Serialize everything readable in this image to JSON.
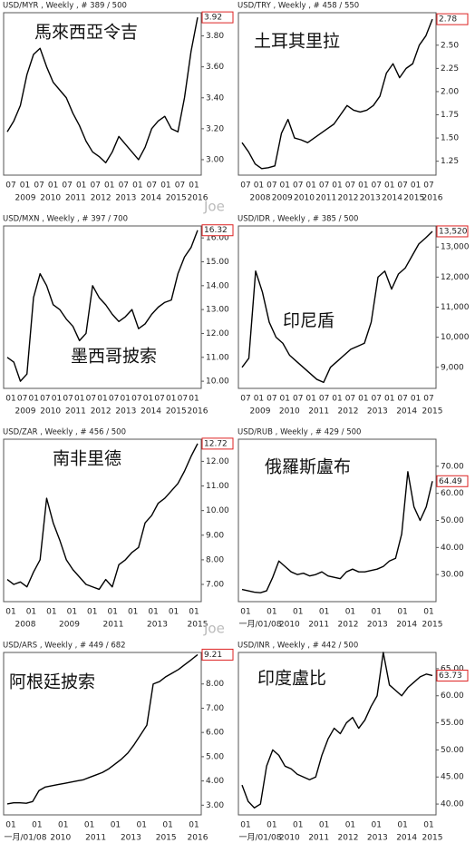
{
  "chart_data": [
    {
      "type": "line",
      "header": "USD/MYR , Weekly , # 389 / 500",
      "title": "馬來西亞令吉",
      "last": {
        "value": 3.92,
        "label": "3.92"
      },
      "ylim": [
        2.9,
        3.95
      ],
      "yticks": [
        {
          "value": 3.0,
          "label": "3.00"
        },
        {
          "value": 3.2,
          "label": "3.20"
        },
        {
          "value": 3.4,
          "label": "3.40"
        },
        {
          "value": 3.6,
          "label": "3.60"
        },
        {
          "value": 3.8,
          "label": "3.80"
        }
      ],
      "x_labels_top": [
        "07",
        "01",
        "07",
        "01",
        "07",
        "01",
        "07",
        "01",
        "07",
        "01",
        "07",
        "01",
        "07",
        "01"
      ],
      "x_labels_bottom": [
        "2009",
        "2010",
        "2011",
        "2012",
        "2013",
        "2014",
        "2015",
        "2016"
      ],
      "color": "#000000",
      "values": [
        3.18,
        3.25,
        3.35,
        3.55,
        3.68,
        3.72,
        3.6,
        3.5,
        3.45,
        3.4,
        3.3,
        3.22,
        3.12,
        3.05,
        3.02,
        2.98,
        3.05,
        3.15,
        3.1,
        3.05,
        3.0,
        3.08,
        3.2,
        3.25,
        3.28,
        3.2,
        3.18,
        3.4,
        3.7,
        3.92
      ]
    },
    {
      "type": "line",
      "header": "USD/TRY , Weekly , # 458 / 550",
      "title": "土耳其里拉",
      "last": {
        "value": 2.78,
        "label": "2.78"
      },
      "ylim": [
        1.1,
        2.85
      ],
      "yticks": [
        {
          "value": 1.25,
          "label": "1.25"
        },
        {
          "value": 1.5,
          "label": "1.50"
        },
        {
          "value": 1.75,
          "label": "1.75"
        },
        {
          "value": 2.0,
          "label": "2.00"
        },
        {
          "value": 2.25,
          "label": "2.25"
        },
        {
          "value": 2.5,
          "label": "2.50"
        }
      ],
      "x_labels_top": [
        "07",
        "01",
        "07",
        "01",
        "07",
        "01",
        "07",
        "01",
        "07",
        "01",
        "07",
        "01",
        "07",
        "01",
        "07"
      ],
      "x_labels_bottom": [
        "2008",
        "2009",
        "2010",
        "2011",
        "2012",
        "2013",
        "2014",
        "2015",
        "2016"
      ],
      "color": "#000000",
      "values": [
        1.45,
        1.35,
        1.22,
        1.17,
        1.18,
        1.2,
        1.55,
        1.7,
        1.5,
        1.48,
        1.45,
        1.5,
        1.55,
        1.6,
        1.65,
        1.75,
        1.85,
        1.8,
        1.78,
        1.8,
        1.85,
        1.95,
        2.2,
        2.3,
        2.15,
        2.25,
        2.3,
        2.5,
        2.6,
        2.78
      ]
    },
    {
      "type": "line",
      "header": "USD/MXN , Weekly , # 397 / 700",
      "title": "墨西哥披索",
      "last": {
        "value": 16.32,
        "label": "16.32"
      },
      "ylim": [
        9.7,
        16.5
      ],
      "yticks": [
        {
          "value": 10,
          "label": "10.00"
        },
        {
          "value": 11,
          "label": "11.00"
        },
        {
          "value": 12,
          "label": "12.00"
        },
        {
          "value": 13,
          "label": "13.00"
        },
        {
          "value": 14,
          "label": "14.00"
        },
        {
          "value": 15,
          "label": "15.00"
        },
        {
          "value": 16,
          "label": "16.00"
        }
      ],
      "x_labels_top": [
        "01",
        "07",
        "01",
        "07",
        "01",
        "07",
        "01",
        "07",
        "01",
        "07",
        "01",
        "07",
        "01",
        "07",
        "01",
        "07",
        "01"
      ],
      "x_labels_bottom": [
        "2009",
        "2010",
        "2011",
        "2012",
        "2013",
        "2014",
        "2015",
        "2016"
      ],
      "color": "#000000",
      "values": [
        11.0,
        10.8,
        10.0,
        10.3,
        13.5,
        14.5,
        14.0,
        13.2,
        13.0,
        12.6,
        12.3,
        11.7,
        12.0,
        14.0,
        13.5,
        13.2,
        12.8,
        12.5,
        12.7,
        13.0,
        12.2,
        12.4,
        12.8,
        13.1,
        13.3,
        13.4,
        14.5,
        15.2,
        15.6,
        16.32
      ]
    },
    {
      "type": "line",
      "header": "USD/IDR , Weekly , # 385 / 500",
      "title": "印尼盾",
      "last": {
        "value": 13520,
        "label": "13,520"
      },
      "ylim": [
        8300,
        13700
      ],
      "yticks": [
        {
          "value": 9000,
          "label": "9,000"
        },
        {
          "value": 10000,
          "label": "10,000"
        },
        {
          "value": 11000,
          "label": "11,000"
        },
        {
          "value": 12000,
          "label": "12,000"
        },
        {
          "value": 13000,
          "label": "13,000"
        }
      ],
      "x_labels_top": [
        "07",
        "01",
        "07",
        "01",
        "07",
        "01",
        "07",
        "01",
        "07",
        "01",
        "07",
        "01",
        "07",
        "01",
        "07"
      ],
      "x_labels_bottom": [
        "2009",
        "2010",
        "2011",
        "2012",
        "2013",
        "2014",
        "2015"
      ],
      "color": "#000000",
      "values": [
        9000,
        9300,
        12200,
        11500,
        10500,
        10000,
        9800,
        9400,
        9200,
        9000,
        8800,
        8600,
        8500,
        9000,
        9200,
        9400,
        9600,
        9700,
        9800,
        10500,
        12000,
        12200,
        11600,
        12100,
        12300,
        12700,
        13100,
        13300,
        13520
      ]
    },
    {
      "type": "line",
      "header": "USD/ZAR , Weekly , # 456 / 500",
      "title": "南非里德",
      "last": {
        "value": 12.72,
        "label": "12.72"
      },
      "ylim": [
        6.3,
        12.9
      ],
      "yticks": [
        {
          "value": 7,
          "label": "7.00"
        },
        {
          "value": 8,
          "label": "8.00"
        },
        {
          "value": 9,
          "label": "9.00"
        },
        {
          "value": 10,
          "label": "10.00"
        },
        {
          "value": 11,
          "label": "11.00"
        },
        {
          "value": 12,
          "label": "12.00"
        }
      ],
      "x_labels_top": [
        "01",
        "01",
        "01",
        "01",
        "01",
        "01",
        "01",
        "01",
        "01",
        "01"
      ],
      "x_labels_bottom": [
        "2008",
        "2009",
        "2011",
        "2013",
        "2015"
      ],
      "color": "#000000",
      "values": [
        7.2,
        7.0,
        7.1,
        6.9,
        7.5,
        8.0,
        10.5,
        9.5,
        8.8,
        8.0,
        7.6,
        7.3,
        7.0,
        6.9,
        6.8,
        7.2,
        6.9,
        7.8,
        8.0,
        8.3,
        8.5,
        9.5,
        9.8,
        10.3,
        10.5,
        10.8,
        11.1,
        11.6,
        12.2,
        12.72
      ]
    },
    {
      "type": "line",
      "header": "USD/RUB , Weekly , # 429 / 500",
      "title": "俄羅斯盧布",
      "last": {
        "value": 64.49,
        "label": "64.49"
      },
      "ylim": [
        20,
        80
      ],
      "yticks": [
        {
          "value": 30,
          "label": "30.00"
        },
        {
          "value": 40,
          "label": "40.00"
        },
        {
          "value": 50,
          "label": "50.00"
        },
        {
          "value": 60,
          "label": "60.00"
        },
        {
          "value": 70,
          "label": "70.00"
        }
      ],
      "x_labels_top": [
        "01",
        "01",
        "01",
        "01",
        "01",
        "01",
        "01",
        "01"
      ],
      "x_labels_bottom": [
        "一月/01/08",
        "2010",
        "2011",
        "2012",
        "2013",
        "2014",
        "2015"
      ],
      "color": "#000000",
      "values": [
        24.5,
        24.0,
        23.5,
        23.3,
        24,
        29,
        35,
        33,
        31,
        30,
        30.5,
        29.5,
        30,
        31,
        29.5,
        29,
        28.5,
        31,
        32,
        31,
        31,
        31.5,
        32,
        33,
        35,
        36,
        45,
        68,
        55,
        50,
        55,
        64.49
      ]
    },
    {
      "type": "line",
      "header": "USD/ARS , Weekly , # 449 / 682",
      "title": "阿根廷披索",
      "last": {
        "value": 9.21,
        "label": "9.21"
      },
      "ylim": [
        2.6,
        9.3
      ],
      "yticks": [
        {
          "value": 3,
          "label": "3.00"
        },
        {
          "value": 4,
          "label": "4.00"
        },
        {
          "value": 5,
          "label": "5.00"
        },
        {
          "value": 6,
          "label": "6.00"
        },
        {
          "value": 7,
          "label": "7.00"
        },
        {
          "value": 8,
          "label": "8.00"
        }
      ],
      "x_labels_top": [
        "01",
        "01",
        "01",
        "01",
        "01",
        "01",
        "01",
        "01"
      ],
      "x_labels_bottom": [
        "一月/01/08",
        "2010",
        "2011",
        "2013",
        "2015",
        "2016"
      ],
      "color": "#000000",
      "values": [
        3.05,
        3.1,
        3.1,
        3.08,
        3.15,
        3.6,
        3.75,
        3.8,
        3.85,
        3.9,
        3.95,
        4.0,
        4.05,
        4.15,
        4.25,
        4.35,
        4.5,
        4.7,
        4.9,
        5.15,
        5.5,
        5.9,
        6.3,
        8.0,
        8.1,
        8.3,
        8.45,
        8.6,
        8.8,
        9.0,
        9.21
      ]
    },
    {
      "type": "line",
      "header": "USD/INR , Weekly , # 442 / 500",
      "title": "印度盧比",
      "last": {
        "value": 63.73,
        "label": "63.73"
      },
      "ylim": [
        38,
        68
      ],
      "yticks": [
        {
          "value": 40,
          "label": "40.00"
        },
        {
          "value": 45,
          "label": "45.00"
        },
        {
          "value": 50,
          "label": "50.00"
        },
        {
          "value": 55,
          "label": "55.00"
        },
        {
          "value": 60,
          "label": "60.00"
        },
        {
          "value": 65,
          "label": "65.00"
        }
      ],
      "x_labels_top": [
        "01",
        "01",
        "01",
        "01",
        "01",
        "01",
        "01",
        "01"
      ],
      "x_labels_bottom": [
        "一月/01/08",
        "2010",
        "2011",
        "2012",
        "2013",
        "2014",
        "2015"
      ],
      "color": "#000000",
      "values": [
        43.5,
        40.5,
        39.3,
        40,
        47,
        50,
        49,
        47,
        46.5,
        45.5,
        45,
        44.5,
        45,
        49,
        52,
        54,
        53,
        55,
        56,
        54,
        55.5,
        58,
        60,
        68,
        62,
        61,
        60,
        61.5,
        62.5,
        63.5,
        64,
        63.73
      ]
    }
  ],
  "watermarks": [
    "Joe",
    "Joe"
  ]
}
